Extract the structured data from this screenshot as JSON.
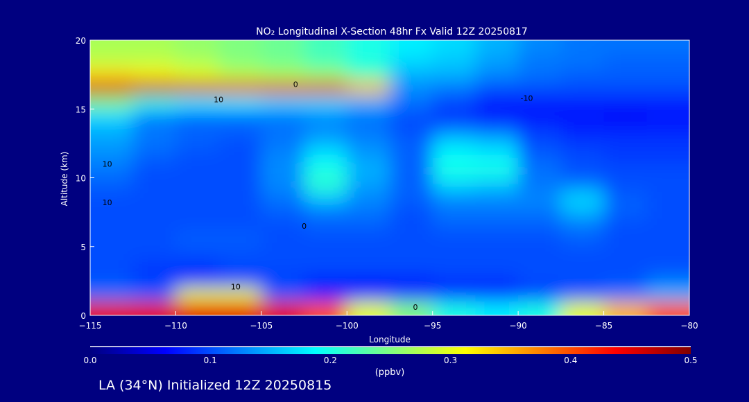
{
  "chart_data": {
    "type": "heatmap",
    "title": "NO₂ Longitudinal X-Section 48hr  Fx Valid 12Z 20250817",
    "xlabel": "Longitude",
    "ylabel": "Altitude (km)",
    "xlim": [
      -115,
      -80
    ],
    "ylim": [
      0,
      20
    ],
    "xticks": [
      "−115",
      "−110",
      "−105",
      "−100",
      "−95",
      "−90",
      "−85",
      "−80"
    ],
    "xtick_values": [
      -115,
      -110,
      -105,
      -100,
      -95,
      -90,
      -85,
      -80
    ],
    "yticks": [
      "0",
      "5",
      "10",
      "15",
      "20"
    ],
    "ytick_values": [
      0,
      5,
      10,
      15,
      20
    ],
    "lon_centers": [
      -113.75,
      -111.25,
      -108.75,
      -106.25,
      -103.75,
      -101.25,
      -98.75,
      -96.25,
      -93.75,
      -91.25,
      -88.75,
      -86.25,
      -83.75,
      -81.25
    ],
    "alt_centers": [
      19.5,
      18.5,
      17.5,
      16.5,
      15.5,
      14.5,
      13.5,
      12.5,
      11.5,
      10.5,
      9.5,
      8.5,
      7.5,
      6.5,
      5.5,
      4.5,
      3.5,
      2.5,
      1.5,
      0.5
    ],
    "values": [
      [
        0.27,
        0.27,
        0.26,
        0.25,
        0.24,
        0.22,
        0.2,
        0.18,
        0.17,
        0.15,
        0.13,
        0.12,
        0.12,
        0.12
      ],
      [
        0.28,
        0.28,
        0.27,
        0.25,
        0.24,
        0.22,
        0.2,
        0.17,
        0.16,
        0.14,
        0.12,
        0.12,
        0.11,
        0.11
      ],
      [
        0.33,
        0.32,
        0.3,
        0.28,
        0.27,
        0.26,
        0.22,
        0.15,
        0.15,
        0.13,
        0.12,
        0.11,
        0.11,
        0.11
      ],
      [
        0.46,
        0.47,
        0.46,
        0.45,
        0.45,
        0.45,
        0.35,
        0.13,
        0.12,
        0.1,
        0.1,
        0.1,
        0.1,
        0.1
      ],
      [
        0.25,
        0.2,
        0.18,
        0.18,
        0.17,
        0.17,
        0.15,
        0.12,
        0.1,
        0.08,
        0.08,
        0.08,
        0.08,
        0.08
      ],
      [
        0.17,
        0.13,
        0.12,
        0.12,
        0.12,
        0.13,
        0.12,
        0.1,
        0.08,
        0.07,
        0.07,
        0.07,
        0.06,
        0.07
      ],
      [
        0.15,
        0.12,
        0.11,
        0.11,
        0.12,
        0.13,
        0.12,
        0.1,
        0.12,
        0.11,
        0.09,
        0.08,
        0.08,
        0.08
      ],
      [
        0.14,
        0.12,
        0.11,
        0.1,
        0.12,
        0.15,
        0.13,
        0.11,
        0.17,
        0.16,
        0.1,
        0.09,
        0.09,
        0.09
      ],
      [
        0.13,
        0.11,
        0.1,
        0.1,
        0.13,
        0.18,
        0.14,
        0.11,
        0.19,
        0.18,
        0.11,
        0.1,
        0.09,
        0.09
      ],
      [
        0.12,
        0.1,
        0.1,
        0.1,
        0.13,
        0.2,
        0.15,
        0.11,
        0.2,
        0.2,
        0.12,
        0.1,
        0.1,
        0.1
      ],
      [
        0.11,
        0.1,
        0.1,
        0.1,
        0.13,
        0.21,
        0.14,
        0.11,
        0.17,
        0.16,
        0.12,
        0.12,
        0.1,
        0.1
      ],
      [
        0.1,
        0.1,
        0.1,
        0.1,
        0.12,
        0.16,
        0.13,
        0.11,
        0.13,
        0.13,
        0.13,
        0.17,
        0.11,
        0.1
      ],
      [
        0.1,
        0.1,
        0.1,
        0.1,
        0.11,
        0.12,
        0.12,
        0.1,
        0.12,
        0.12,
        0.12,
        0.15,
        0.11,
        0.1
      ],
      [
        0.1,
        0.1,
        0.1,
        0.1,
        0.1,
        0.11,
        0.11,
        0.1,
        0.11,
        0.11,
        0.11,
        0.12,
        0.1,
        0.1
      ],
      [
        0.1,
        0.1,
        0.11,
        0.11,
        0.1,
        0.1,
        0.1,
        0.1,
        0.1,
        0.1,
        0.1,
        0.11,
        0.1,
        0.1
      ],
      [
        0.1,
        0.1,
        0.1,
        0.1,
        0.1,
        0.1,
        0.1,
        0.1,
        0.1,
        0.1,
        0.1,
        0.1,
        0.1,
        0.1
      ],
      [
        0.1,
        0.09,
        0.09,
        0.1,
        0.1,
        0.1,
        0.1,
        0.1,
        0.1,
        0.1,
        0.1,
        0.1,
        0.1,
        0.1
      ],
      [
        0.1,
        0.09,
        0.08,
        0.09,
        0.09,
        0.08,
        0.08,
        0.08,
        0.09,
        0.09,
        0.1,
        0.1,
        0.1,
        0.12
      ],
      [
        0.12,
        0.11,
        0.3,
        0.3,
        0.11,
        0.08,
        0.07,
        0.08,
        0.08,
        0.08,
        0.09,
        0.1,
        0.12,
        0.15
      ],
      [
        0.45,
        0.45,
        0.45,
        0.45,
        0.45,
        0.4,
        0.3,
        0.25,
        0.2,
        0.18,
        0.2,
        0.3,
        0.35,
        0.4
      ]
    ],
    "contour_labels": [
      {
        "text": "10",
        "lon": -107.5,
        "alt": 15.5
      },
      {
        "text": "0",
        "lon": -103,
        "alt": 16.6
      },
      {
        "text": "-10",
        "lon": -89.5,
        "alt": 15.6
      },
      {
        "text": "10",
        "lon": -114,
        "alt": 10.8
      },
      {
        "text": "10",
        "lon": -114,
        "alt": 8
      },
      {
        "text": "0",
        "lon": -102.5,
        "alt": 6.3
      },
      {
        "text": "10",
        "lon": -106.5,
        "alt": 1.9
      },
      {
        "text": "0",
        "lon": -96,
        "alt": 0.4
      }
    ],
    "colorbar": {
      "ticks": [
        "0.0",
        "0.1",
        "0.2",
        "0.3",
        "0.4",
        "0.5"
      ],
      "range": [
        0,
        0.5
      ],
      "label": "(ppbv)"
    },
    "footer": "LA (34°N) Initialized 12Z 20250815"
  }
}
